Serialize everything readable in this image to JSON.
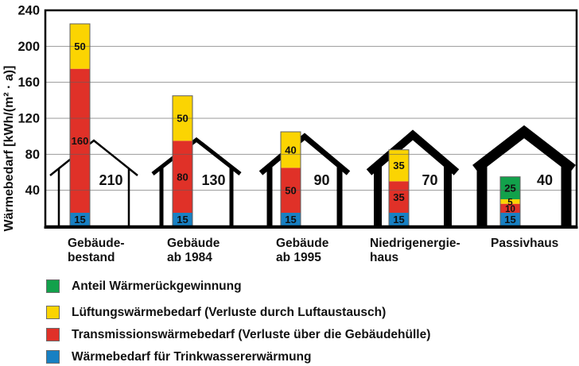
{
  "chart_data": {
    "type": "bar",
    "stacked": true,
    "title": "",
    "ylabel": "Wärmebedarf [kWh/(m² · a)]",
    "xlabel": "",
    "ylim": [
      0,
      240
    ],
    "yticks": [
      240,
      200,
      160,
      120,
      80,
      40
    ],
    "grid": true,
    "legend_position": "bottom-left",
    "categories": [
      {
        "label_lines": [
          "Gebäude-",
          "bestand"
        ],
        "house_label": "210"
      },
      {
        "label_lines": [
          "Gebäude",
          "ab 1984"
        ],
        "house_label": "130"
      },
      {
        "label_lines": [
          "Gebäude",
          "ab 1995"
        ],
        "house_label": "90"
      },
      {
        "label_lines": [
          "Niedrigenergie-",
          "haus"
        ],
        "house_label": "70"
      },
      {
        "label_lines": [
          "Passivhaus"
        ],
        "house_label": "40"
      }
    ],
    "series": [
      {
        "name": "Wärmebedarf für Trinkwassererwärmung",
        "color": "#1880c3",
        "values": [
          15,
          15,
          15,
          15,
          15
        ]
      },
      {
        "name": "Transmissionswärmebedarf (Verluste über die Gebäudehülle)",
        "color": "#e03128",
        "values": [
          160,
          80,
          50,
          35,
          10
        ]
      },
      {
        "name": "Lüftungswärmebedarf (Verluste durch Luftaustausch)",
        "color": "#fbd402",
        "values": [
          50,
          50,
          40,
          35,
          5
        ]
      },
      {
        "name": "Anteil Wärmerückgewinnung",
        "color": "#12a14b",
        "values": [
          0,
          0,
          0,
          0,
          25
        ]
      }
    ],
    "legend": [
      {
        "label": "Anteil Wärmerückgewinnung",
        "color": "#12a14b"
      },
      {
        "label": "Lüftungswärmebedarf (Verluste durch Luftaustausch)",
        "color": "#fbd402"
      },
      {
        "label": "Transmissionswärmebedarf (Verluste über die Gebäudehülle)",
        "color": "#e03128"
      },
      {
        "label": "Wärmebedarf für Trinkwassererwärmung",
        "color": "#1880c3"
      }
    ]
  }
}
